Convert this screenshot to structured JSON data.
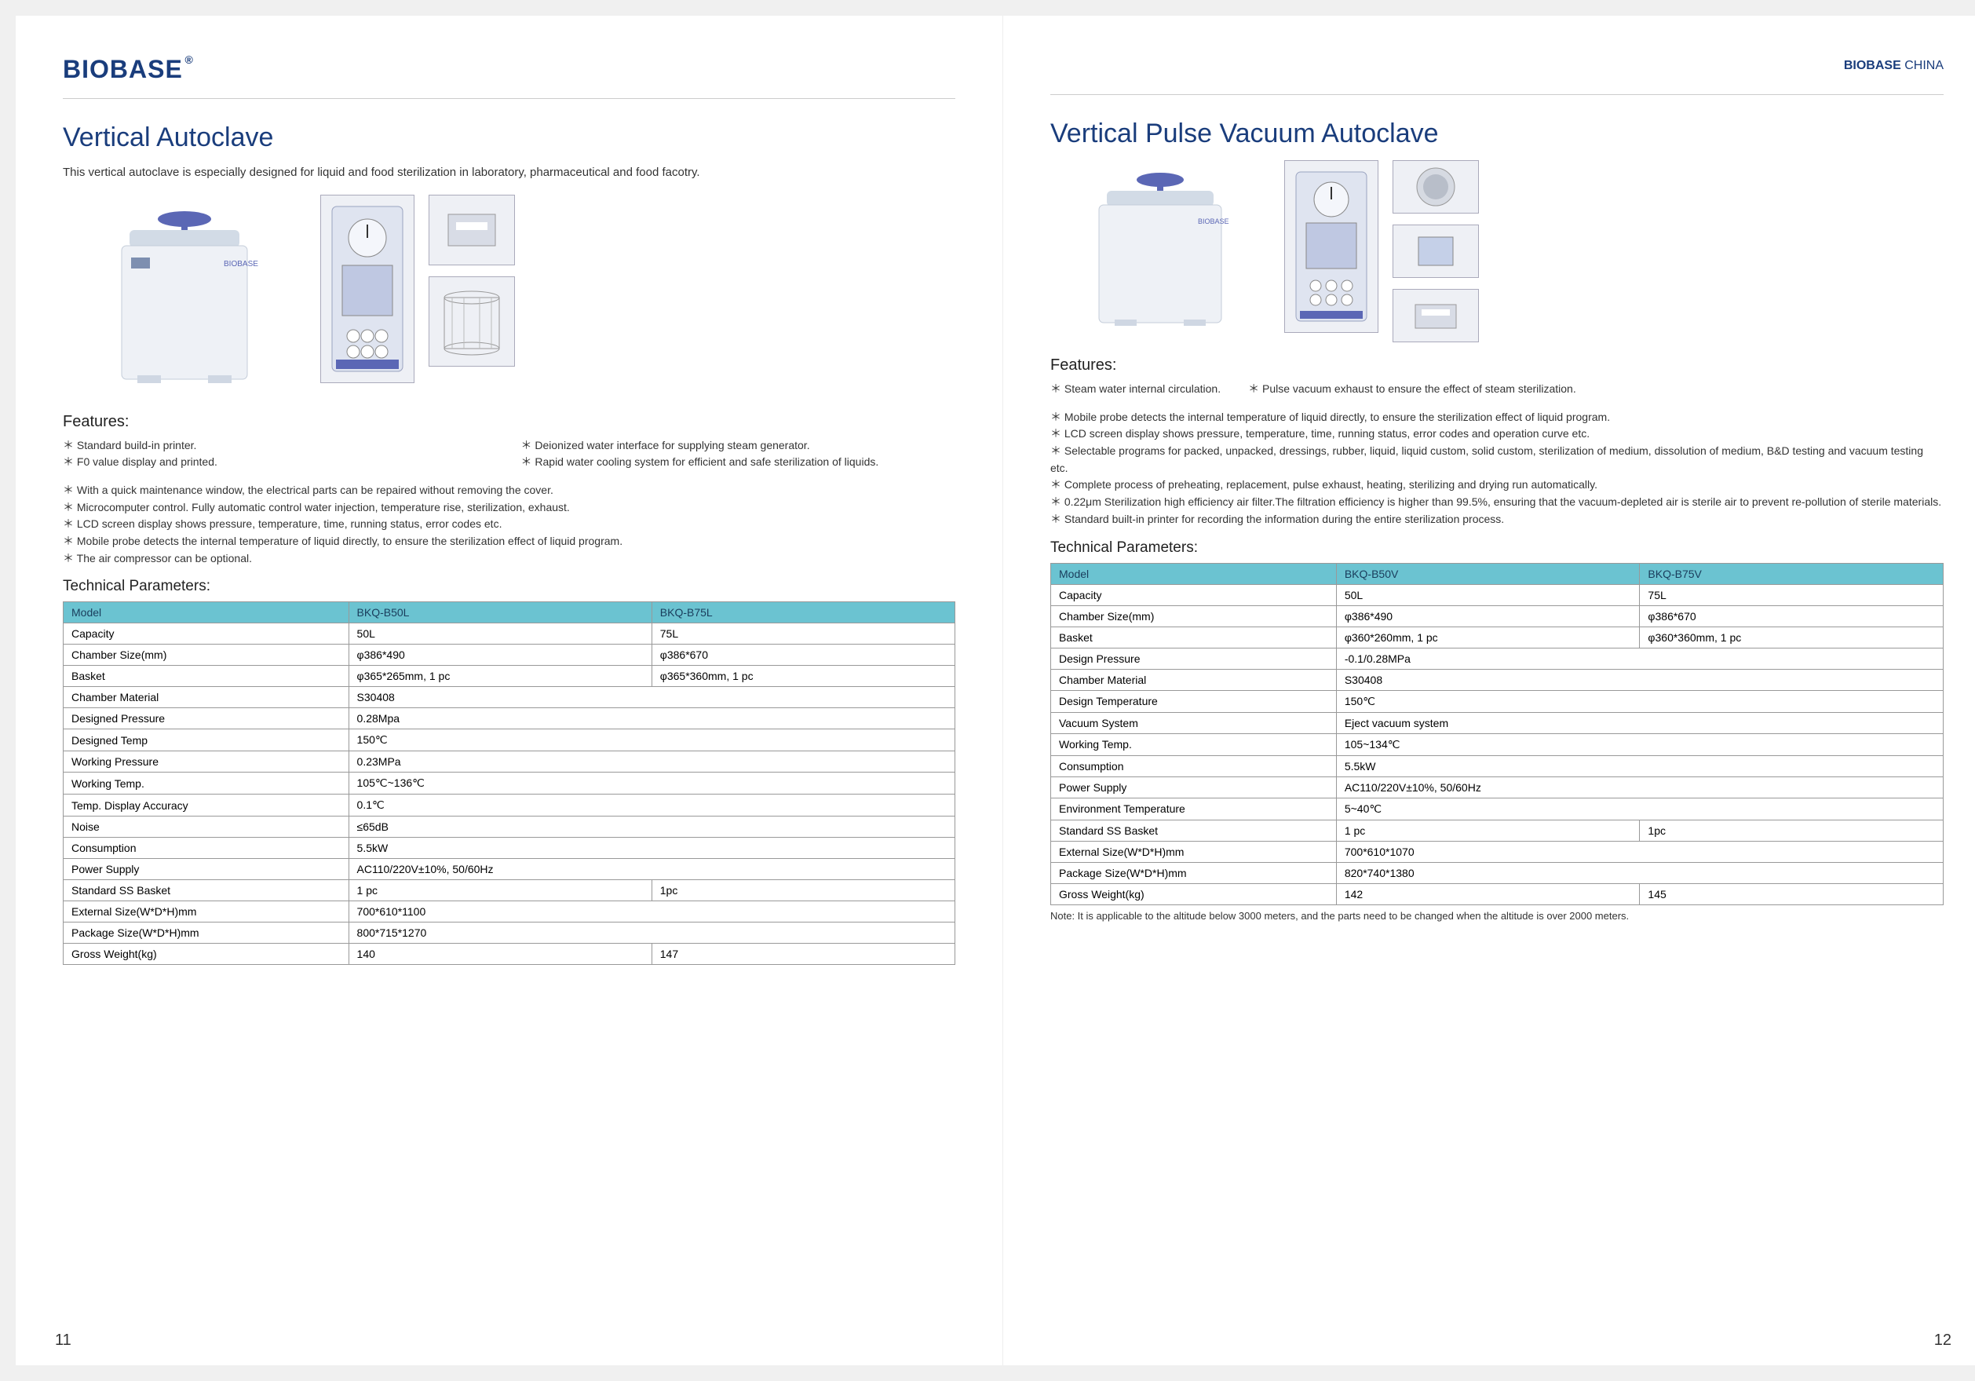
{
  "header": {
    "logo": "BIOBASE",
    "logo_sup": "®",
    "top_right_bold": "BIOBASE",
    "top_right_rest": " CHINA"
  },
  "left": {
    "title": "Vertical Autoclave",
    "intro": "This vertical autoclave is especially designed for liquid and food sterilization in laboratory, pharmaceutical and food facotry.",
    "features_hd": "Features:",
    "features_col1": [
      "Standard build-in printer.",
      "F0 value display and printed."
    ],
    "features_col2": [
      "Deionized water interface for supplying steam generator.",
      "Rapid water cooling system for efficient and safe sterilization of liquids."
    ],
    "features_rest": [
      "With a quick maintenance window, the electrical parts can be repaired without removing the cover.",
      "Microcomputer control. Fully automatic control water injection, temperature rise, sterilization, exhaust.",
      "LCD screen display shows pressure, temperature, time, running status, error codes etc.",
      "Mobile probe detects the internal temperature of liquid directly, to ensure the sterilization effect of liquid program.",
      "The air compressor can be optional."
    ],
    "tech_hd": "Technical Parameters:",
    "table": {
      "headers": [
        "Model",
        "BKQ-B50L",
        "BKQ-B75L"
      ],
      "rows": [
        [
          "Capacity",
          "50L",
          "75L"
        ],
        [
          "Chamber Size(mm)",
          "φ386*490",
          "φ386*670"
        ],
        [
          "Basket",
          "φ365*265mm, 1 pc",
          "φ365*360mm, 1 pc"
        ],
        [
          "Chamber Material",
          "S30408",
          ""
        ],
        [
          "Designed Pressure",
          "0.28Mpa",
          ""
        ],
        [
          "Designed Temp",
          "150℃",
          ""
        ],
        [
          "Working Pressure",
          "0.23MPa",
          ""
        ],
        [
          "Working Temp.",
          "105℃~136℃",
          ""
        ],
        [
          "Temp. Display Accuracy",
          "0.1℃",
          ""
        ],
        [
          "Noise",
          "≤65dB",
          ""
        ],
        [
          "Consumption",
          "5.5kW",
          ""
        ],
        [
          "Power Supply",
          "AC110/220V±10%, 50/60Hz",
          ""
        ],
        [
          "Standard SS Basket",
          "1 pc",
          "1pc"
        ],
        [
          "External Size(W*D*H)mm",
          "700*610*1100",
          ""
        ],
        [
          "Package Size(W*D*H)mm",
          "800*715*1270",
          ""
        ],
        [
          "Gross Weight(kg)",
          "140",
          "147"
        ]
      ],
      "span2_rows": [
        3,
        4,
        5,
        6,
        7,
        8,
        9,
        10,
        11,
        13,
        14
      ]
    },
    "pagenum": "11"
  },
  "right": {
    "title": "Vertical Pulse Vacuum Autoclave",
    "features_hd": "Features:",
    "features_inline": [
      "Steam water internal circulation.",
      "Pulse vacuum exhaust to ensure the effect of steam sterilization."
    ],
    "features_rest": [
      "Mobile probe detects the internal temperature of liquid directly, to ensure the sterilization effect of liquid program.",
      "LCD screen display shows pressure, temperature, time, running status, error codes and operation curve etc.",
      "Selectable programs for packed, unpacked, dressings, rubber, liquid, liquid custom, solid custom, sterilization of medium, dissolution of medium, B&D testing and vacuum testing etc.",
      "Complete process of preheating, replacement, pulse exhaust, heating, sterilizing and drying run automatically.",
      "0.22μm Sterilization high efficiency air filter.The filtration efficiency is higher than 99.5%, ensuring that the vacuum-depleted air is sterile air to prevent re-pollution of sterile materials.",
      "Standard built-in printer for recording the information during the entire sterilization process."
    ],
    "tech_hd": "Technical Parameters:",
    "table": {
      "headers": [
        "Model",
        "BKQ-B50V",
        "BKQ-B75V"
      ],
      "rows": [
        [
          "Capacity",
          "50L",
          "75L"
        ],
        [
          "Chamber Size(mm)",
          "φ386*490",
          "φ386*670"
        ],
        [
          "Basket",
          "φ360*260mm, 1 pc",
          "φ360*360mm, 1 pc"
        ],
        [
          "Design Pressure",
          "-0.1/0.28MPa",
          ""
        ],
        [
          "Chamber Material",
          "S30408",
          ""
        ],
        [
          "Design Temperature",
          "150℃",
          ""
        ],
        [
          "Vacuum System",
          "Eject vacuum system",
          ""
        ],
        [
          "Working Temp.",
          "105~134℃",
          ""
        ],
        [
          "Consumption",
          "5.5kW",
          ""
        ],
        [
          "Power Supply",
          "AC110/220V±10%, 50/60Hz",
          ""
        ],
        [
          "Environment Temperature",
          "5~40℃",
          ""
        ],
        [
          "Standard SS Basket",
          "1 pc",
          "1pc"
        ],
        [
          "External Size(W*D*H)mm",
          "700*610*1070",
          ""
        ],
        [
          "Package Size(W*D*H)mm",
          "820*740*1380",
          ""
        ],
        [
          "Gross Weight(kg)",
          "142",
          "145"
        ]
      ],
      "span2_rows": [
        3,
        4,
        5,
        6,
        7,
        8,
        9,
        10,
        12,
        13
      ]
    },
    "note": "Note: It is applicable to the altitude below 3000 meters, and the parts need to be changed when the altitude is over 2000 meters.",
    "pagenum": "12"
  }
}
